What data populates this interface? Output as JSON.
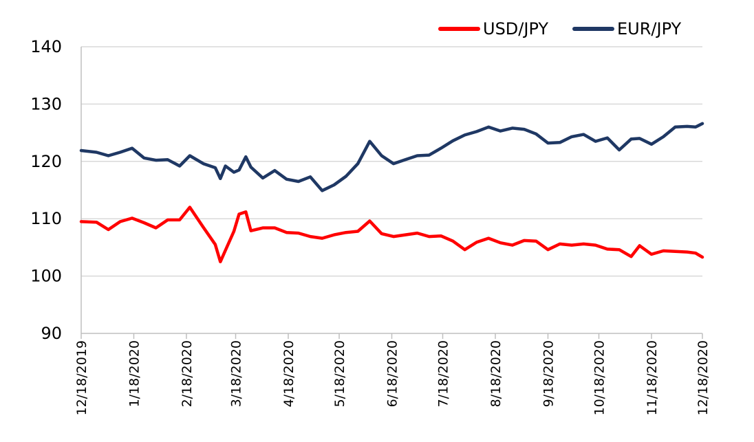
{
  "chart_data": {
    "type": "line",
    "title": "",
    "xlabel": "",
    "ylabel": "",
    "ylim": [
      90,
      140
    ],
    "yticks": [
      90,
      100,
      110,
      120,
      130,
      140
    ],
    "grid": true,
    "legend_position": "top-right",
    "x_tick_labels": [
      "12/18/2019",
      "1/18/2020",
      "2/18/2020",
      "3/18/2020",
      "4/18/2020",
      "5/18/2020",
      "6/18/2020",
      "7/18/2020",
      "8/18/2020",
      "9/18/2020",
      "10/18/2020",
      "11/18/2020",
      "12/18/2020"
    ],
    "series": [
      {
        "name": "USD/JPY",
        "color": "#ff0000",
        "points": [
          [
            "12/18/2019",
            109.5
          ],
          [
            "12/27/2019",
            109.4
          ],
          [
            "1/3/2020",
            108.1
          ],
          [
            "1/10/2020",
            109.5
          ],
          [
            "1/17/2020",
            110.1
          ],
          [
            "1/24/2020",
            109.3
          ],
          [
            "1/31/2020",
            108.4
          ],
          [
            "2/7/2020",
            109.8
          ],
          [
            "2/14/2020",
            109.8
          ],
          [
            "2/20/2020",
            112.0
          ],
          [
            "2/28/2020",
            108.5
          ],
          [
            "3/6/2020",
            105.5
          ],
          [
            "3/9/2020",
            102.5
          ],
          [
            "3/12/2020",
            104.5
          ],
          [
            "3/17/2020",
            107.8
          ],
          [
            "3/20/2020",
            110.8
          ],
          [
            "3/24/2020",
            111.2
          ],
          [
            "3/27/2020",
            107.9
          ],
          [
            "4/3/2020",
            108.4
          ],
          [
            "4/10/2020",
            108.4
          ],
          [
            "4/17/2020",
            107.6
          ],
          [
            "4/24/2020",
            107.5
          ],
          [
            "5/1/2020",
            106.9
          ],
          [
            "5/8/2020",
            106.6
          ],
          [
            "5/15/2020",
            107.2
          ],
          [
            "5/22/2020",
            107.6
          ],
          [
            "5/29/2020",
            107.8
          ],
          [
            "6/5/2020",
            109.6
          ],
          [
            "6/12/2020",
            107.4
          ],
          [
            "6/19/2020",
            106.9
          ],
          [
            "6/26/2020",
            107.2
          ],
          [
            "7/3/2020",
            107.5
          ],
          [
            "7/10/2020",
            106.9
          ],
          [
            "7/17/2020",
            107.0
          ],
          [
            "7/24/2020",
            106.1
          ],
          [
            "7/31/2020",
            104.6
          ],
          [
            "8/7/2020",
            105.9
          ],
          [
            "8/14/2020",
            106.6
          ],
          [
            "8/21/2020",
            105.8
          ],
          [
            "8/28/2020",
            105.4
          ],
          [
            "9/4/2020",
            106.2
          ],
          [
            "9/11/2020",
            106.1
          ],
          [
            "9/18/2020",
            104.6
          ],
          [
            "9/25/2020",
            105.6
          ],
          [
            "10/2/2020",
            105.4
          ],
          [
            "10/9/2020",
            105.6
          ],
          [
            "10/16/2020",
            105.4
          ],
          [
            "10/23/2020",
            104.7
          ],
          [
            "10/30/2020",
            104.6
          ],
          [
            "11/6/2020",
            103.4
          ],
          [
            "11/11/2020",
            105.3
          ],
          [
            "11/18/2020",
            103.8
          ],
          [
            "11/25/2020",
            104.4
          ],
          [
            "12/2/2020",
            104.3
          ],
          [
            "12/9/2020",
            104.2
          ],
          [
            "12/14/2020",
            104.0
          ],
          [
            "12/18/2020",
            103.3
          ]
        ]
      },
      {
        "name": "EUR/JPY",
        "color": "#1f3864",
        "points": [
          [
            "12/18/2019",
            121.9
          ],
          [
            "12/27/2019",
            121.6
          ],
          [
            "1/3/2020",
            121.0
          ],
          [
            "1/10/2020",
            121.6
          ],
          [
            "1/17/2020",
            122.3
          ],
          [
            "1/24/2020",
            120.6
          ],
          [
            "1/31/2020",
            120.2
          ],
          [
            "2/7/2020",
            120.3
          ],
          [
            "2/14/2020",
            119.2
          ],
          [
            "2/20/2020",
            121.0
          ],
          [
            "2/28/2020",
            119.6
          ],
          [
            "3/6/2020",
            118.9
          ],
          [
            "3/9/2020",
            117.0
          ],
          [
            "3/12/2020",
            119.2
          ],
          [
            "3/17/2020",
            118.1
          ],
          [
            "3/20/2020",
            118.5
          ],
          [
            "3/24/2020",
            120.8
          ],
          [
            "3/27/2020",
            119.0
          ],
          [
            "4/3/2020",
            117.1
          ],
          [
            "4/10/2020",
            118.4
          ],
          [
            "4/17/2020",
            116.9
          ],
          [
            "4/24/2020",
            116.5
          ],
          [
            "5/1/2020",
            117.3
          ],
          [
            "5/8/2020",
            114.9
          ],
          [
            "5/15/2020",
            115.9
          ],
          [
            "5/22/2020",
            117.4
          ],
          [
            "5/29/2020",
            119.6
          ],
          [
            "6/5/2020",
            123.5
          ],
          [
            "6/12/2020",
            121.0
          ],
          [
            "6/19/2020",
            119.6
          ],
          [
            "6/26/2020",
            120.3
          ],
          [
            "7/3/2020",
            121.0
          ],
          [
            "7/10/2020",
            121.1
          ],
          [
            "7/17/2020",
            122.3
          ],
          [
            "7/24/2020",
            123.6
          ],
          [
            "7/31/2020",
            124.6
          ],
          [
            "8/7/2020",
            125.2
          ],
          [
            "8/14/2020",
            126.0
          ],
          [
            "8/21/2020",
            125.3
          ],
          [
            "8/28/2020",
            125.8
          ],
          [
            "9/4/2020",
            125.6
          ],
          [
            "9/11/2020",
            124.8
          ],
          [
            "9/18/2020",
            123.2
          ],
          [
            "9/25/2020",
            123.3
          ],
          [
            "10/2/2020",
            124.3
          ],
          [
            "10/9/2020",
            124.7
          ],
          [
            "10/16/2020",
            123.5
          ],
          [
            "10/23/2020",
            124.1
          ],
          [
            "10/30/2020",
            122.0
          ],
          [
            "11/6/2020",
            123.9
          ],
          [
            "11/11/2020",
            124.0
          ],
          [
            "11/18/2020",
            123.0
          ],
          [
            "11/25/2020",
            124.3
          ],
          [
            "12/2/2020",
            126.0
          ],
          [
            "12/9/2020",
            126.1
          ],
          [
            "12/14/2020",
            126.0
          ],
          [
            "12/18/2020",
            126.6
          ]
        ]
      }
    ]
  }
}
